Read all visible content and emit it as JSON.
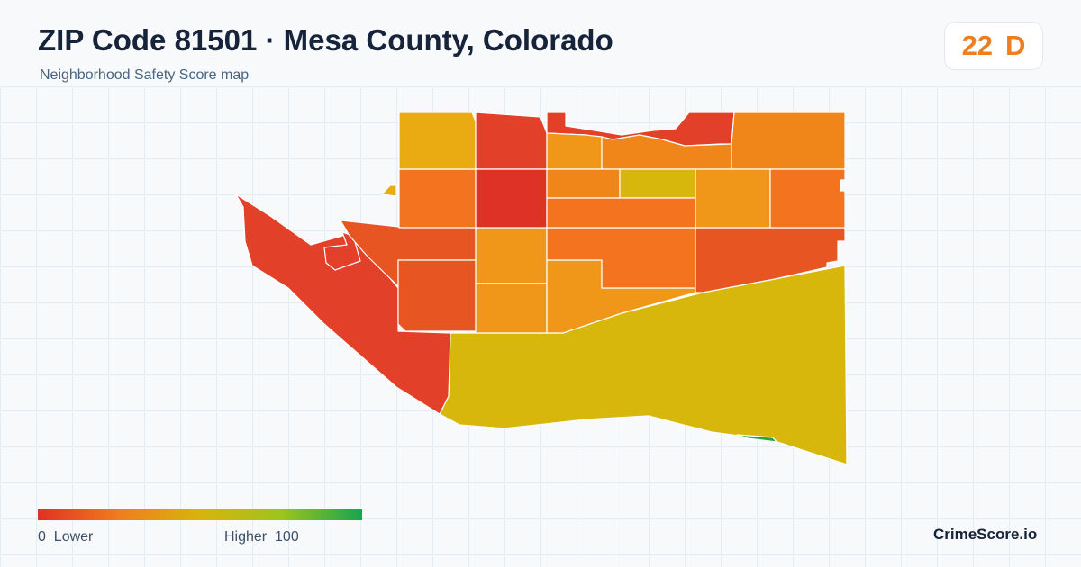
{
  "header": {
    "title": "ZIP Code 81501 · Mesa County, Colorado",
    "subtitle": "Neighborhood Safety Score map"
  },
  "score": {
    "value": "22",
    "grade": "D",
    "color": "#f07d1e"
  },
  "legend": {
    "low_label": "0  Lower",
    "high_label": "Higher  100",
    "colors": [
      "#e03123",
      "#f07d1e",
      "#d8b40c",
      "#9ec41b",
      "#16a550"
    ]
  },
  "brand": "CrimeScore.io",
  "map": {
    "region_colors": {
      "dark_red": "#df3226",
      "red": "#e3402a",
      "red_orange": "#e75522",
      "orange": "#f3731e",
      "orange_2": "#f0851a",
      "amber": "#f09618",
      "gold": "#e9aa12",
      "yellow": "#d8b70c",
      "green": "#1ba84a"
    }
  }
}
